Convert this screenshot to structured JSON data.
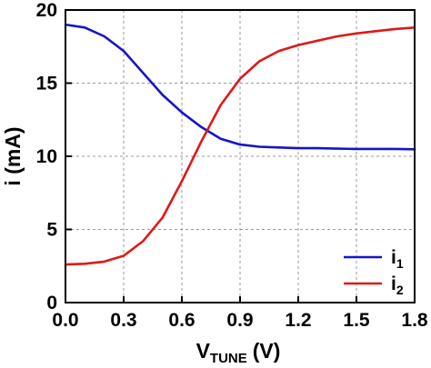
{
  "chart_data": {
    "type": "line",
    "xlabel": {
      "main": "V",
      "sub": "TUNE",
      "unit": "(V)"
    },
    "ylabel": "i (mA)",
    "xlim": [
      0.0,
      1.8
    ],
    "ylim": [
      0,
      20
    ],
    "xticks": [
      "0.0",
      "0.3",
      "0.6",
      "0.9",
      "1.2",
      "1.5",
      "1.8"
    ],
    "yticks": [
      "0",
      "5",
      "10",
      "15",
      "20"
    ],
    "grid": true,
    "legend_position": "bottom-right",
    "series": [
      {
        "name": "i",
        "name_sub": "1",
        "color": "#1414cc",
        "x": [
          0.0,
          0.1,
          0.2,
          0.3,
          0.4,
          0.5,
          0.6,
          0.7,
          0.8,
          0.9,
          1.0,
          1.1,
          1.2,
          1.3,
          1.4,
          1.5,
          1.6,
          1.7,
          1.8
        ],
        "y": [
          19.0,
          18.8,
          18.2,
          17.2,
          15.7,
          14.2,
          13.0,
          12.0,
          11.2,
          10.8,
          10.65,
          10.6,
          10.55,
          10.55,
          10.52,
          10.5,
          10.5,
          10.5,
          10.48
        ]
      },
      {
        "name": "i",
        "name_sub": "2",
        "color": "#e01818",
        "x": [
          0.0,
          0.1,
          0.2,
          0.3,
          0.4,
          0.5,
          0.6,
          0.7,
          0.8,
          0.9,
          1.0,
          1.1,
          1.2,
          1.3,
          1.4,
          1.5,
          1.6,
          1.7,
          1.8
        ],
        "y": [
          2.6,
          2.65,
          2.8,
          3.2,
          4.2,
          5.8,
          8.3,
          11.0,
          13.5,
          15.3,
          16.5,
          17.2,
          17.6,
          17.9,
          18.2,
          18.4,
          18.55,
          18.7,
          18.8
        ]
      }
    ]
  }
}
